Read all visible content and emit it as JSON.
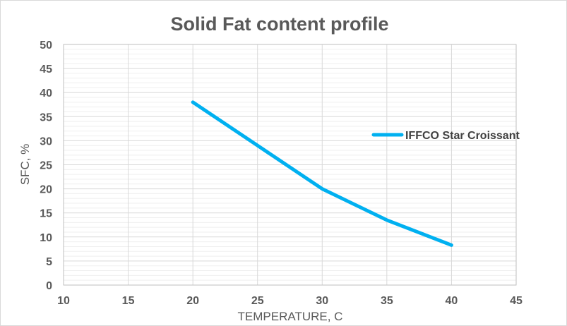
{
  "chart_data": {
    "type": "line",
    "title": "Solid Fat content profile",
    "xlabel": "TEMPERATURE, C",
    "ylabel": "SFC, %",
    "xlim": [
      10,
      45
    ],
    "ylim": [
      0,
      50
    ],
    "x_ticks": [
      10,
      15,
      20,
      25,
      30,
      35,
      40,
      45
    ],
    "y_ticks": [
      0,
      5,
      10,
      15,
      20,
      25,
      30,
      35,
      40,
      45,
      50
    ],
    "grid": true,
    "legend_position": "right",
    "series": [
      {
        "name": "IFFCO Star Croissant",
        "color": "#00b0f0",
        "x": [
          20,
          25,
          30,
          35,
          40
        ],
        "y": [
          38,
          29,
          20,
          13.5,
          8.3
        ]
      }
    ]
  }
}
